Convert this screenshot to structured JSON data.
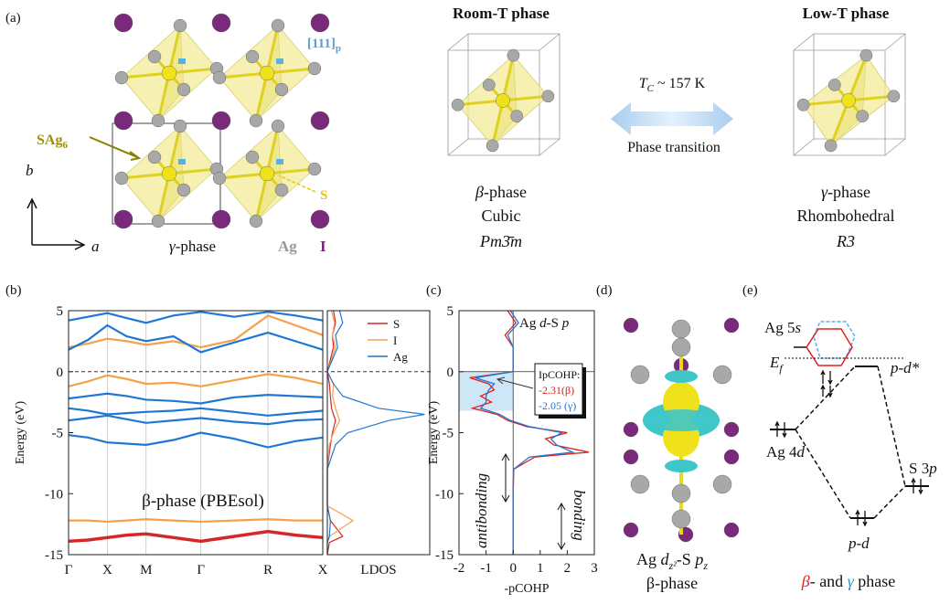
{
  "panel_labels": [
    "(a)",
    "(b)",
    "(c)",
    "(d)",
    "(e)"
  ],
  "panel_a": {
    "label_111": "[111]",
    "label_111_sub": "p",
    "sag": "SAg",
    "sag_sub": "6",
    "s_label": "S",
    "axis_b": "b",
    "axis_a": "a",
    "gamma_symbol": "γ",
    "gamma_suffix": "-phase",
    "ag": "Ag",
    "i": "I",
    "room_t": {
      "title": "Room-T phase",
      "phase_symbol": "β",
      "phase_suffix": "-phase",
      "system": "Cubic",
      "space_group": "Pm3̄m"
    },
    "transition": {
      "tc": "T",
      "tc_sub": "C",
      "tc_rest": " ~ 157 K",
      "label": "Phase transition"
    },
    "low_t": {
      "title": "Low-T phase",
      "phase_symbol": "γ",
      "phase_suffix": "-phase",
      "system": "Rhombohedral",
      "space_group": "R3"
    }
  },
  "chart_data": [
    {
      "type": "line",
      "ylabel": "Energy (eV)",
      "annotation": "β-phase (PBEsol)",
      "fermi_level": 0,
      "x": [
        0,
        0.5,
        1,
        1.5,
        2,
        2.707,
        3.414,
        4.28,
        5.146,
        5.853,
        6.56
      ],
      "xlim": [
        0,
        6.56
      ],
      "xticks": [
        {
          "value": 0,
          "label": "Γ"
        },
        {
          "value": 1,
          "label": "X"
        },
        {
          "value": 2,
          "label": "M"
        },
        {
          "value": 3.414,
          "label": "Γ"
        },
        {
          "value": 5.146,
          "label": "R"
        },
        {
          "value": 6.56,
          "label": "X"
        }
      ],
      "ylim": [
        -15,
        5
      ],
      "yticks": [
        -15,
        -10,
        -5,
        0,
        5
      ],
      "series": [
        {
          "color": "#d62728",
          "bands": [
            [
              -13.9,
              -13.8,
              -13.6,
              -13.4,
              -13.3,
              -13.6,
              -13.9,
              -13.5,
              -13.1,
              -13.4,
              -13.6
            ]
          ]
        },
        {
          "color": "#f5a04a",
          "bands": [
            [
              -12.2,
              -12.2,
              -12.3,
              -12.2,
              -12.1,
              -12.2,
              -12.3,
              -12.2,
              -12.1,
              -12.2,
              -12.2
            ],
            [
              -1.2,
              -0.8,
              -0.3,
              -0.6,
              -1.0,
              -0.9,
              -1.2,
              -0.7,
              -0.2,
              -0.5,
              -1.0
            ],
            [
              2.0,
              2.3,
              2.7,
              2.5,
              2.2,
              2.5,
              2.0,
              2.6,
              4.6,
              3.8,
              3.0
            ]
          ]
        },
        {
          "color": "#1f77d4",
          "bands": [
            [
              1.8,
              2.6,
              3.8,
              2.9,
              2.5,
              2.9,
              1.6,
              2.4,
              3.2,
              2.5,
              1.8
            ],
            [
              4.2,
              4.5,
              4.8,
              4.4,
              4.0,
              4.6,
              4.9,
              4.5,
              4.9,
              4.6,
              4.2
            ],
            [
              -2.2,
              -2.0,
              -1.8,
              -2.0,
              -2.3,
              -2.4,
              -2.6,
              -2.1,
              -1.9,
              -2.0,
              -2.1
            ],
            [
              -3.0,
              -3.2,
              -3.5,
              -3.4,
              -3.3,
              -3.2,
              -3.0,
              -3.3,
              -3.6,
              -3.4,
              -3.2
            ],
            [
              -4.0,
              -3.8,
              -3.6,
              -3.9,
              -4.2,
              -4.0,
              -3.8,
              -4.1,
              -4.3,
              -4.0,
              -3.9
            ],
            [
              -5.2,
              -5.4,
              -5.8,
              -5.9,
              -6.0,
              -5.6,
              -5.0,
              -5.5,
              -6.2,
              -5.7,
              -5.4
            ]
          ]
        }
      ]
    },
    {
      "type": "line",
      "xlabel": "LDOS",
      "xlim": [
        0,
        10
      ],
      "ylim": [
        -15,
        5
      ],
      "legend": "upper right",
      "energies": [
        -15,
        -14,
        -13.5,
        -12.2,
        -11,
        -8,
        -6,
        -5,
        -4,
        -3.5,
        -3,
        -2,
        -1,
        0,
        1,
        2,
        3,
        4,
        5
      ],
      "series": [
        {
          "name": "S",
          "color": "#d62728",
          "values": [
            0,
            0.2,
            1.5,
            0.3,
            0,
            0,
            0.3,
            0.5,
            0.8,
            0.6,
            0.4,
            0.3,
            0.2,
            0,
            0.3,
            0.6,
            0.5,
            0.8,
            0.6
          ]
        },
        {
          "name": "I",
          "color": "#f5a04a",
          "values": [
            0,
            0,
            0.2,
            2.5,
            0,
            0,
            0.2,
            0.6,
            1.2,
            1,
            0.8,
            0.5,
            0.6,
            0,
            0.4,
            0.8,
            0.5,
            0.7,
            0.4
          ]
        },
        {
          "name": "Ag",
          "color": "#1f77d4",
          "values": [
            0,
            0,
            0.2,
            0.3,
            0,
            0,
            0.8,
            2,
            6,
            9.5,
            5,
            1.5,
            0.6,
            0,
            0.5,
            1,
            0.8,
            1.5,
            1.2
          ]
        }
      ]
    },
    {
      "type": "line",
      "xlabel": "-pCOHP",
      "ylabel": "Energy (eV)",
      "xlim": [
        -2,
        3
      ],
      "xticks": [
        -2,
        -1,
        0,
        1,
        2,
        3
      ],
      "ylim": [
        -15,
        5
      ],
      "yticks": [
        -15,
        -10,
        -5,
        0,
        5
      ],
      "shaded_range": [
        -3.2,
        0
      ],
      "title_parts": [
        "Ag ",
        "d",
        "-S ",
        "p"
      ],
      "ipcohp_title": "IpCOHP:",
      "ipcohp_beta": "-2.31(β)",
      "ipcohp_gamma": "-2.05 (γ)",
      "antibonding": "antibonding",
      "bonding": "bonding",
      "energies": [
        -15,
        -10,
        -8,
        -7,
        -6.6,
        -6,
        -5.5,
        -5,
        -4.5,
        -4,
        -3.5,
        -3,
        -2.5,
        -2,
        -1.5,
        -1,
        -0.5,
        0,
        1,
        2,
        3,
        4,
        5
      ],
      "series": [
        {
          "color": "#e02020",
          "values": [
            0,
            0,
            0.02,
            0.8,
            2.8,
            1.5,
            1.2,
            2,
            0.5,
            -0.2,
            -0.6,
            -1.5,
            -0.8,
            -1.2,
            -0.7,
            -0.9,
            -1.6,
            0,
            0,
            0,
            -0.3,
            0.1,
            -0.2
          ]
        },
        {
          "color": "#1f77d4",
          "values": [
            0,
            0,
            0.02,
            0.6,
            2.2,
            1.6,
            1.4,
            1.8,
            0.6,
            -0.1,
            -0.5,
            -1.2,
            -1.0,
            -1.0,
            -0.9,
            -0.7,
            -1.4,
            0,
            0,
            0,
            -0.2,
            0.2,
            -0.1
          ]
        }
      ]
    }
  ],
  "panel_d": {
    "orb1": "Ag ",
    "orb1_it": "d",
    "orb1_sub": "z²",
    "orb2": "-S ",
    "orb2_it": "p",
    "orb2_sub": "z",
    "phase": "β-phase"
  },
  "panel_e": {
    "ag5s": "Ag 5",
    "ag5s_it": "s",
    "ef": "E",
    "ef_sub": "f",
    "pd_star": "p-d*",
    "ag4d": "Ag 4",
    "ag4d_it": "d",
    "s3p": "S 3",
    "s3p_it": "p",
    "pd": "p-d",
    "beta": "β",
    "mid": "- and ",
    "gamma": "γ",
    "tail": " phase"
  }
}
